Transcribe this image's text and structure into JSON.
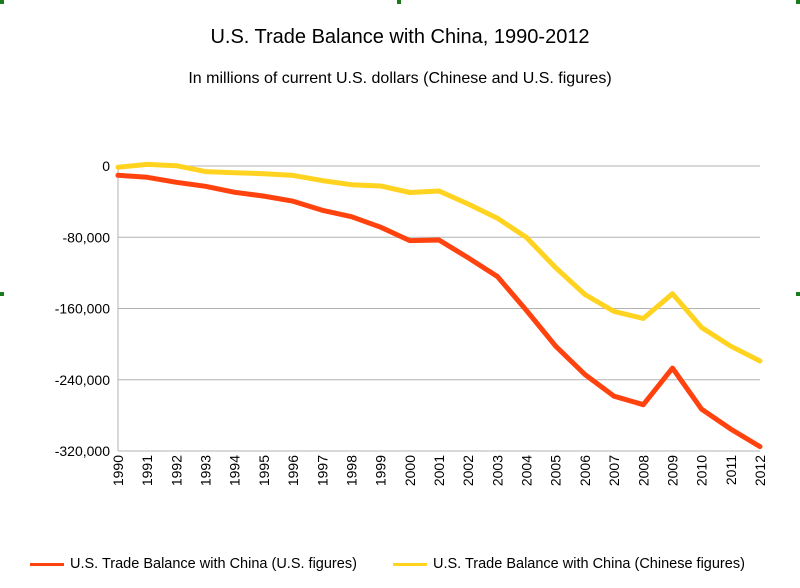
{
  "chart_data": {
    "type": "line",
    "title": "U.S. Trade Balance with China, 1990-2012",
    "subtitle": "In millions of current U.S. dollars (Chinese and U.S. figures)",
    "xlabel": "",
    "ylabel": "",
    "ylim": [
      -320000,
      0
    ],
    "y_ticks": [
      "0",
      "-80,000",
      "-160,000",
      "-240,000",
      "-320,000"
    ],
    "y_tick_values": [
      0,
      -80000,
      -160000,
      -240000,
      -320000
    ],
    "grid": true,
    "legend_position": "bottom",
    "categories": [
      "1990",
      "1991",
      "1992",
      "1993",
      "1994",
      "1995",
      "1996",
      "1997",
      "1998",
      "1999",
      "2000",
      "2001",
      "2002",
      "2003",
      "2004",
      "2005",
      "2006",
      "2007",
      "2008",
      "2009",
      "2010",
      "2011",
      "2012"
    ],
    "series": [
      {
        "name": "U.S. Trade Balance with China (U.S. figures)",
        "color": "#ff420e",
        "values": [
          -10400,
          -12700,
          -18300,
          -22800,
          -29500,
          -33800,
          -39500,
          -49700,
          -56900,
          -68700,
          -83800,
          -83100,
          -103100,
          -124100,
          -162300,
          -202300,
          -234100,
          -258500,
          -268000,
          -226900,
          -273100,
          -295400,
          -315100
        ]
      },
      {
        "name": "U.S. Trade Balance with China (Chinese figures)",
        "color": "#ffd320",
        "values": [
          -1400,
          1800,
          300,
          -6300,
          -7500,
          -8600,
          -10500,
          -16400,
          -21000,
          -22500,
          -29700,
          -28100,
          -42700,
          -58600,
          -80300,
          -114200,
          -144300,
          -163300,
          -171200,
          -143400,
          -181300,
          -202300,
          -218900
        ]
      }
    ]
  }
}
